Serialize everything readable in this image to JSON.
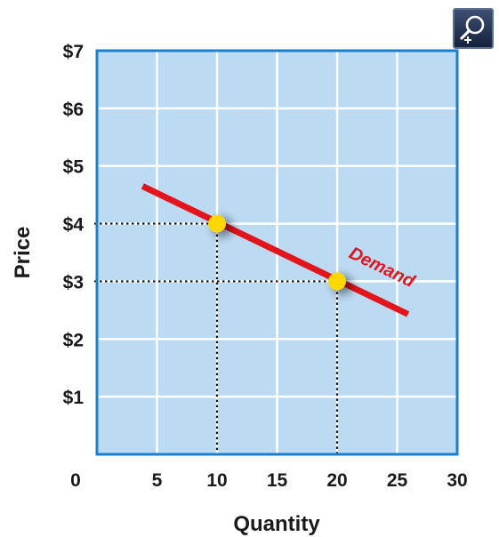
{
  "chart_data": {
    "type": "line",
    "title": "",
    "xlabel": "Quantity",
    "ylabel": "Price",
    "x_origin_label": "0",
    "xlim": [
      0,
      30
    ],
    "ylim": [
      0,
      7
    ],
    "x_ticks": [
      {
        "value": 5,
        "label": "5"
      },
      {
        "value": 10,
        "label": "10"
      },
      {
        "value": 15,
        "label": "15"
      },
      {
        "value": 20,
        "label": "20"
      },
      {
        "value": 25,
        "label": "25"
      },
      {
        "value": 30,
        "label": "30"
      }
    ],
    "y_ticks": [
      {
        "value": 1,
        "label": "$1"
      },
      {
        "value": 2,
        "label": "$2"
      },
      {
        "value": 3,
        "label": "$3"
      },
      {
        "value": 4,
        "label": "$4"
      },
      {
        "value": 5,
        "label": "$5"
      },
      {
        "value": 6,
        "label": "$6"
      },
      {
        "value": 7,
        "label": "$7"
      }
    ],
    "grid": true,
    "series": [
      {
        "name": "Demand",
        "color": "#e3141b",
        "x": [
          3.8,
          25.9
        ],
        "y": [
          4.65,
          2.43
        ]
      }
    ],
    "highlighted_points": [
      {
        "x": 10,
        "y": 4,
        "color": "#ffd700"
      },
      {
        "x": 20,
        "y": 3,
        "color": "#ffd700"
      }
    ],
    "plot_background": "#bcdaf2",
    "frame_color": "#1f7ec9",
    "grid_color": "#ffffff"
  },
  "toolbar": {
    "zoom_icon": "magnifier-plus-icon"
  }
}
